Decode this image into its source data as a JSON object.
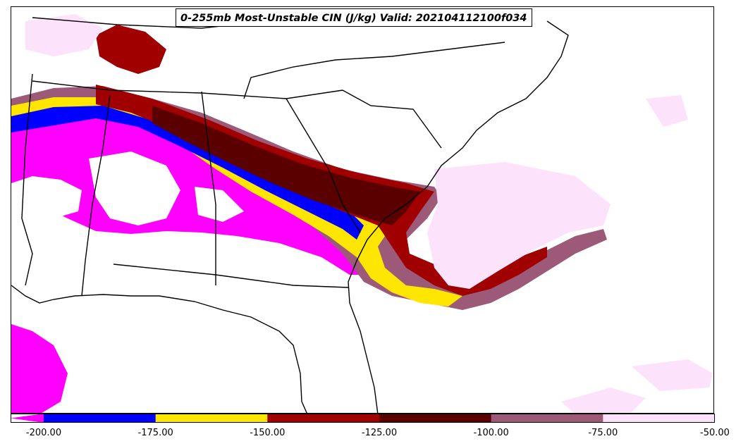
{
  "title": "0-255mb Most-Unstable CIN (J/kg) Valid: 202104112100f034",
  "colorbar": {
    "bins": [
      {
        "from": -200,
        "to": -175,
        "color": "#0000ff"
      },
      {
        "from": -175,
        "to": -150,
        "color": "#ffe600"
      },
      {
        "from": -150,
        "to": -125,
        "color": "#a00000"
      },
      {
        "from": -125,
        "to": -100,
        "color": "#5a0000"
      },
      {
        "from": -100,
        "to": -75,
        "color": "#9c5a78"
      },
      {
        "from": -75,
        "to": -50,
        "color": "#fde2fb"
      }
    ],
    "below_color": "#ff00ff",
    "tick_labels": [
      "-200.00",
      "-175.00",
      "-150.00",
      "-125.00",
      "-100.00",
      "-75.00",
      "-50.00"
    ]
  },
  "field_colors": {
    "magenta": "#ff00ff",
    "blue": "#0000ff",
    "yellow": "#ffe600",
    "red": "#a00000",
    "darkred": "#5a0000",
    "mauve": "#9c5a78",
    "pink": "#fde2fb"
  }
}
